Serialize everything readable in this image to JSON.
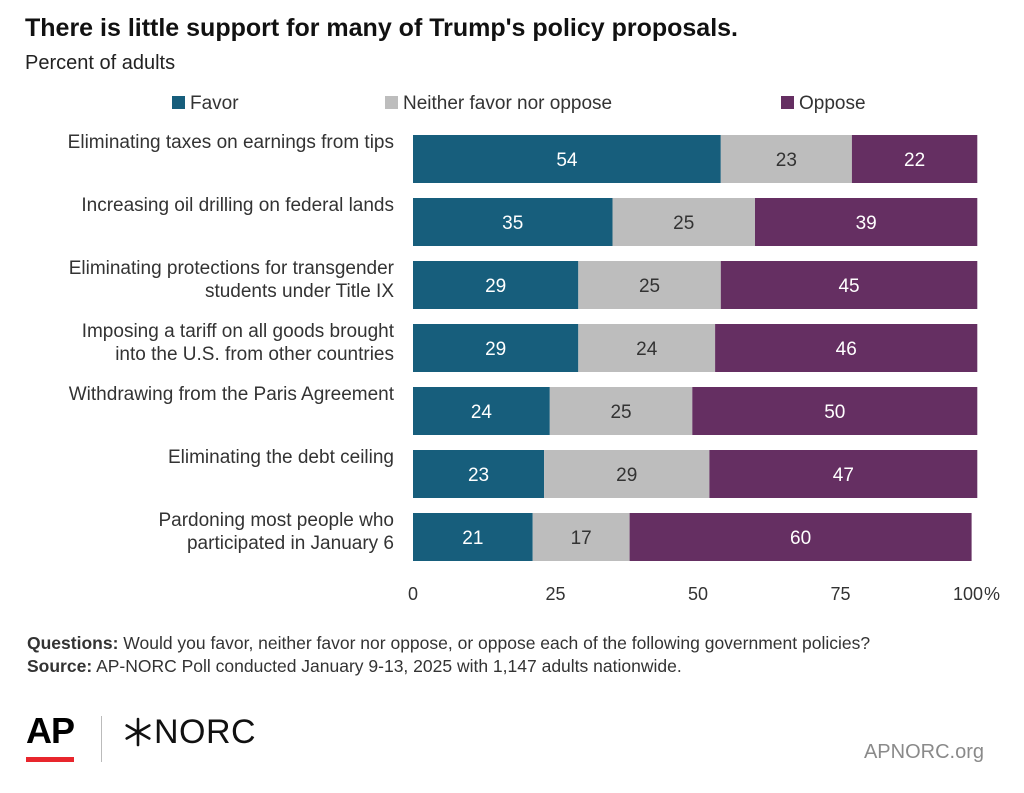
{
  "title": "There is little support for many of Trump's policy proposals.",
  "subtitle": "Percent of adults",
  "chart_data": {
    "type": "bar",
    "orientation": "horizontal",
    "stacked": true,
    "categories": [
      [
        "Eliminating taxes on earnings from tips"
      ],
      [
        "Increasing oil drilling on federal lands"
      ],
      [
        "Eliminating protections for transgender",
        "students under Title IX"
      ],
      [
        "Imposing a tariff on all goods brought",
        "into the U.S. from other countries"
      ],
      [
        "Withdrawing from the Paris Agreement"
      ],
      [
        "Eliminating the debt ceiling"
      ],
      [
        "Pardoning most people who",
        "participated in January 6"
      ]
    ],
    "series": [
      {
        "name": "Favor",
        "color": "#175e7c",
        "values": [
          54,
          35,
          29,
          29,
          24,
          23,
          21
        ]
      },
      {
        "name": "Neither favor nor oppose",
        "color": "#bdbdbd",
        "values": [
          23,
          25,
          25,
          24,
          25,
          29,
          17
        ]
      },
      {
        "name": "Oppose",
        "color": "#652f62",
        "values": [
          22,
          39,
          45,
          46,
          50,
          47,
          60
        ]
      }
    ],
    "xlim": [
      0,
      100
    ],
    "xticks": [
      "0",
      "25",
      "50",
      "75",
      "100"
    ],
    "x_unit": "%",
    "legend_position": "top",
    "grid": false
  },
  "notes": {
    "questions_label": "Questions:",
    "questions_text": "Would you favor, neither favor nor oppose, or oppose each of the following government policies?",
    "source_label": "Source:",
    "source_text": "AP-NORC Poll conducted January 9-13, 2025 with 1,147 adults nationwide."
  },
  "logos": {
    "ap": "AP",
    "norc": "NORC",
    "site": "APNORC.org"
  }
}
